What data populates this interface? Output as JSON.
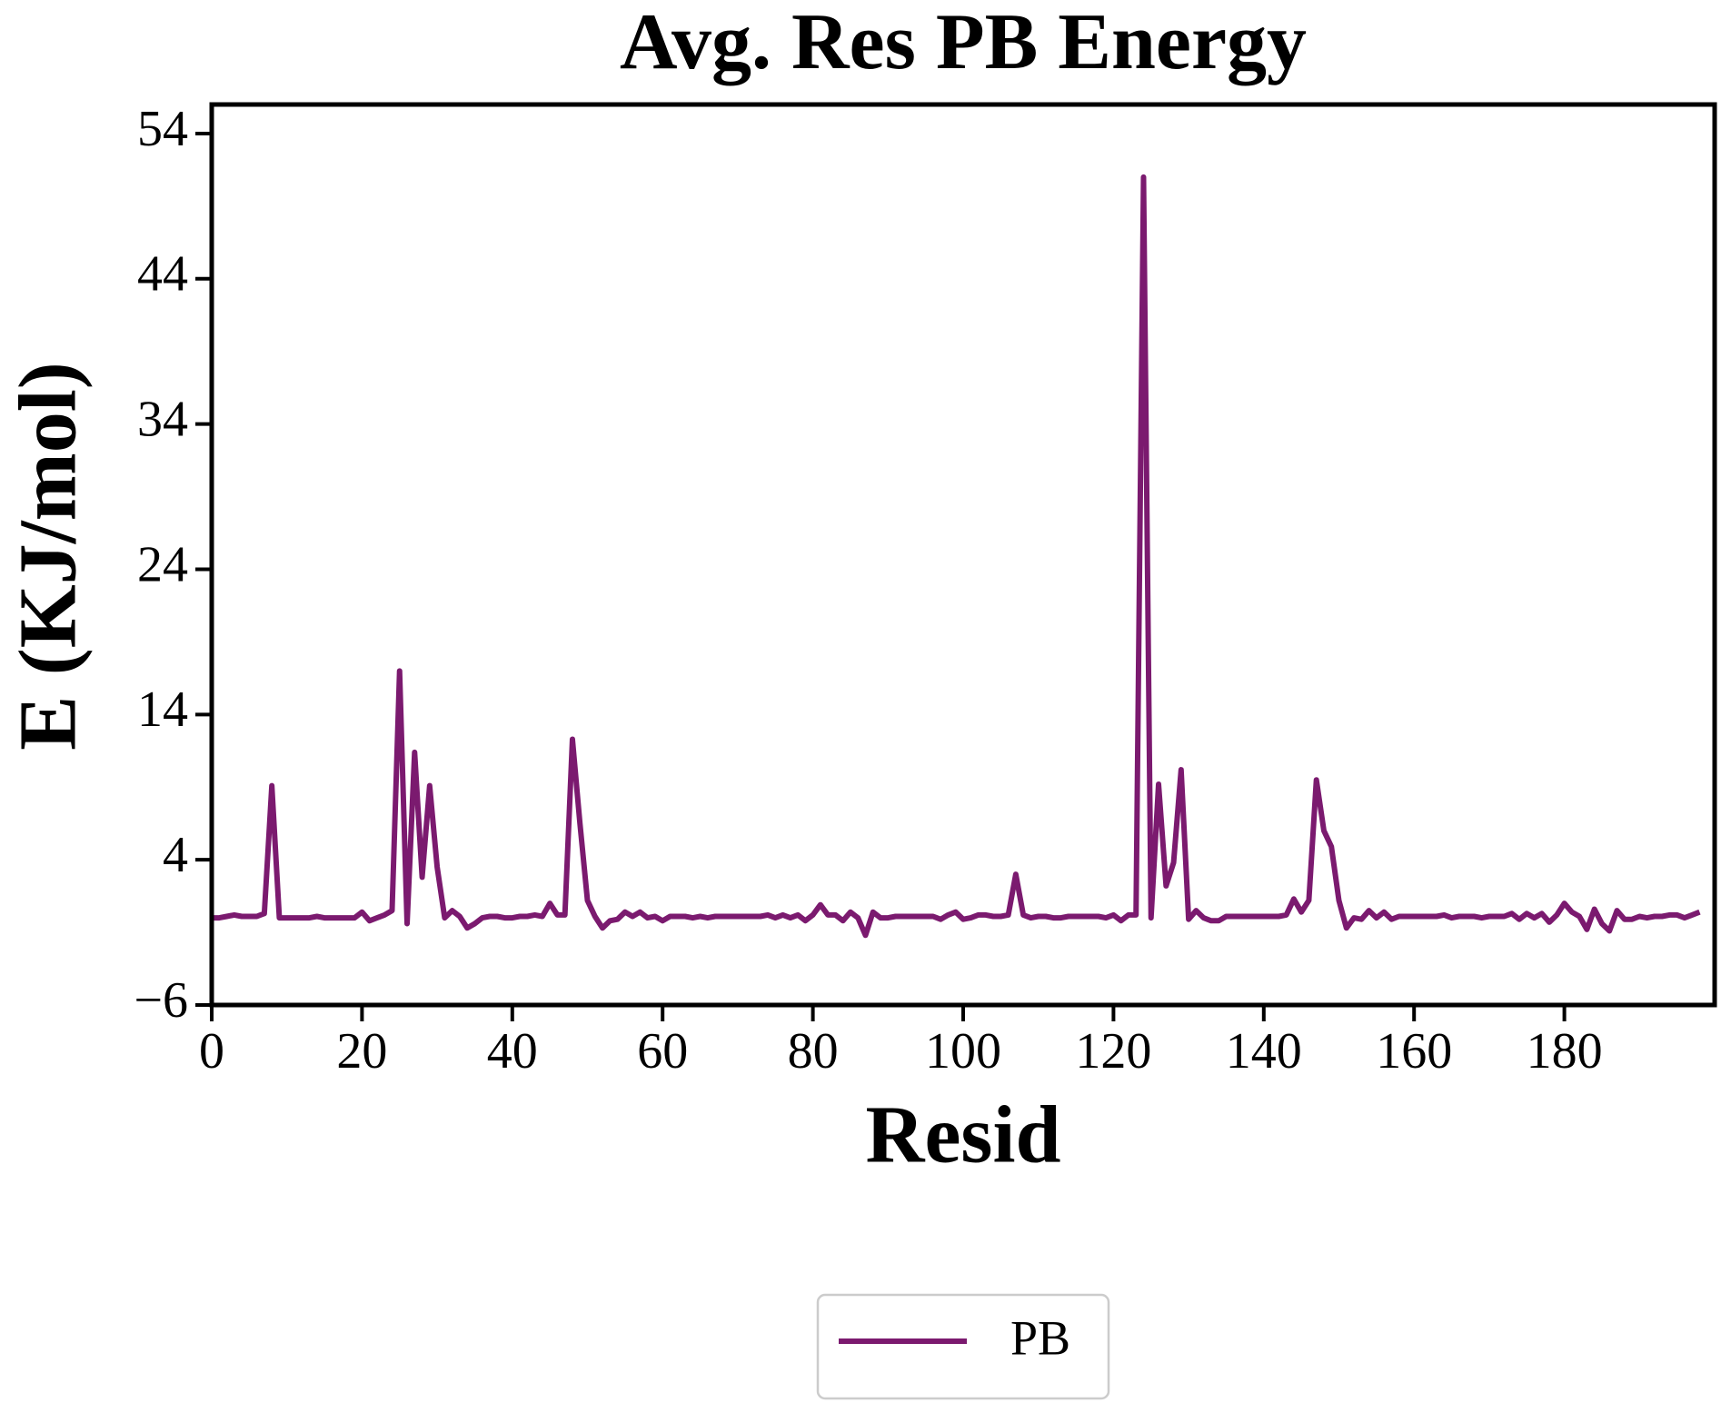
{
  "chart_data": {
    "type": "line",
    "title": "Avg. Res PB Energy",
    "xlabel": "Resid",
    "ylabel": "E (KJ/mol)",
    "x": [
      0,
      1,
      2,
      3,
      4,
      5,
      6,
      7,
      8,
      9,
      10,
      11,
      12,
      13,
      14,
      15,
      16,
      17,
      18,
      19,
      20,
      21,
      22,
      23,
      24,
      25,
      26,
      27,
      28,
      29,
      30,
      31,
      32,
      33,
      34,
      35,
      36,
      37,
      38,
      39,
      40,
      41,
      42,
      43,
      44,
      45,
      46,
      47,
      48,
      49,
      50,
      51,
      52,
      53,
      54,
      55,
      56,
      57,
      58,
      59,
      60,
      61,
      62,
      63,
      64,
      65,
      66,
      67,
      68,
      69,
      70,
      71,
      72,
      73,
      74,
      75,
      76,
      77,
      78,
      79,
      80,
      81,
      82,
      83,
      84,
      85,
      86,
      87,
      88,
      89,
      90,
      91,
      92,
      93,
      94,
      95,
      96,
      97,
      98,
      99,
      100,
      101,
      102,
      103,
      104,
      105,
      106,
      107,
      108,
      109,
      110,
      111,
      112,
      113,
      114,
      115,
      116,
      117,
      118,
      119,
      120,
      121,
      122,
      123,
      124,
      125,
      126,
      127,
      128,
      129,
      130,
      131,
      132,
      133,
      134,
      135,
      136,
      137,
      138,
      139,
      140,
      141,
      142,
      143,
      144,
      145,
      146,
      147,
      148,
      149,
      150,
      151,
      152,
      153,
      154,
      155,
      156,
      157,
      158,
      159,
      160,
      161,
      162,
      163,
      164,
      165,
      166,
      167,
      168,
      169,
      170,
      171,
      172,
      173,
      174,
      175,
      176,
      177,
      178,
      179,
      180,
      181,
      182,
      183,
      184,
      185,
      186,
      187,
      188,
      189,
      190,
      191,
      192,
      193,
      194,
      195,
      196,
      197,
      198
    ],
    "series": [
      {
        "name": "PB",
        "color": "#7b1a6f",
        "values": [
          0,
          0,
          0.1,
          0.2,
          0.1,
          0.1,
          0.1,
          0.3,
          9.1,
          0,
          0,
          0,
          0,
          0,
          0.1,
          0,
          0,
          0,
          0,
          0,
          0.4,
          -0.2,
          0,
          0.2,
          0.5,
          17,
          -0.4,
          11.4,
          2.8,
          9.1,
          3.5,
          0,
          0.5,
          0.1,
          -0.7,
          -0.4,
          0,
          0.1,
          0.1,
          0,
          0,
          0.1,
          0.1,
          0.2,
          0.1,
          1,
          0.2,
          0.2,
          12.3,
          6.5,
          1.2,
          0.1,
          -0.7,
          -0.2,
          -0.1,
          0.4,
          0.1,
          0.4,
          0,
          0.1,
          -0.2,
          0.1,
          0.1,
          0.1,
          0,
          0.1,
          0,
          0.1,
          0.1,
          0.1,
          0.1,
          0.1,
          0.1,
          0.1,
          0.2,
          0,
          0.2,
          0,
          0.2,
          -0.2,
          0.2,
          0.9,
          0.2,
          0.2,
          -0.2,
          0.4,
          0,
          -1.2,
          0.4,
          0,
          0,
          0.1,
          0.1,
          0.1,
          0.1,
          0.1,
          0.1,
          -0.1,
          0.2,
          0.4,
          -0.1,
          0,
          0.2,
          0.2,
          0.1,
          0.1,
          0.2,
          3,
          0.2,
          0,
          0.1,
          0.1,
          0,
          0,
          0.1,
          0.1,
          0.1,
          0.1,
          0.1,
          0,
          0.2,
          -0.2,
          0.2,
          0.2,
          51,
          0,
          9.2,
          2.2,
          3.8,
          10.2,
          -0.1,
          0.5,
          0,
          -0.2,
          -0.2,
          0.1,
          0.1,
          0.1,
          0.1,
          0.1,
          0.1,
          0.1,
          0.1,
          0.2,
          1.3,
          0.4,
          1.2,
          9.5,
          6,
          4.9,
          1.2,
          -0.7,
          0,
          -0.1,
          0.5,
          0,
          0.4,
          -0.1,
          0.1,
          0.1,
          0.1,
          0.1,
          0.1,
          0.1,
          0.2,
          0,
          0.1,
          0.1,
          0.1,
          0,
          0.1,
          0.1,
          0.1,
          0.3,
          -0.1,
          0.3,
          0,
          0.3,
          -0.3,
          0.2,
          1,
          0.4,
          0.1,
          -0.8,
          0.6,
          -0.4,
          -0.9,
          0.5,
          -0.1,
          -0.1,
          0.1,
          0,
          0.1,
          0.1,
          0.2,
          0.2,
          0,
          0.2,
          0.4
        ]
      }
    ],
    "xlim": [
      0,
      200
    ],
    "xticks": [
      0,
      20,
      40,
      60,
      80,
      100,
      120,
      140,
      160,
      180
    ],
    "ylim": [
      -6,
      56
    ],
    "yticks": [
      {
        "value": -6,
        "label": "−6"
      },
      4,
      14,
      24,
      34,
      44,
      54
    ],
    "legend": "bottom"
  }
}
